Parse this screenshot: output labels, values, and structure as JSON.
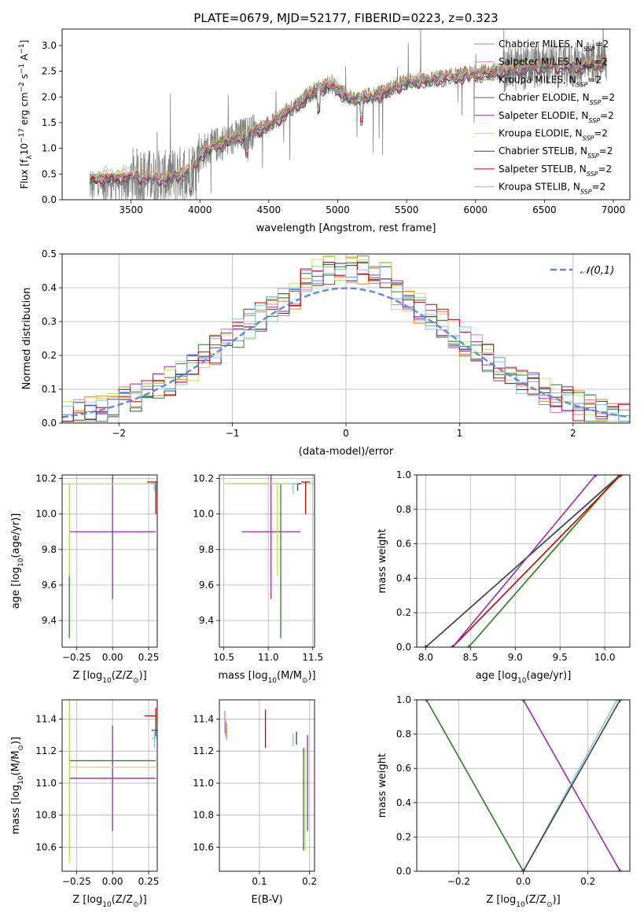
{
  "figure": {
    "title": "PLATE=0679, MJD=52177, FIBERID=0223, z=0.323"
  },
  "series_legend": [
    {
      "name": "Chabrier MILES, N$_{SSP}$=2",
      "label": "Chabrier MILES, N",
      "sub": "SSP",
      "tail": "=2",
      "color": "#6b8fd6"
    },
    {
      "name": "Salpeter MILES, N$_{SSP}$=2",
      "label": "Salpeter MILES, N",
      "sub": "SSP",
      "tail": "=2",
      "color": "#e377c2"
    },
    {
      "name": "Kroupa MILES, N$_{SSP}$=2",
      "label": "Kroupa MILES, N",
      "sub": "SSP",
      "tail": "=2",
      "color": "#ff7f0e"
    },
    {
      "name": "Chabrier ELODIE, N$_{SSP}$=2",
      "label": "Chabrier ELODIE, N",
      "sub": "SSP",
      "tail": "=2",
      "color": "#2e7d32"
    },
    {
      "name": "Salpeter ELODIE, N$_{SSP}$=2",
      "label": "Salpeter ELODIE, N",
      "sub": "SSP",
      "tail": "=2",
      "color": "#9c27b0"
    },
    {
      "name": "Kroupa ELODIE, N$_{SSP}$=2",
      "label": "Kroupa ELODIE, N",
      "sub": "SSP",
      "tail": "=2",
      "color": "#c6e24f"
    },
    {
      "name": "Chabrier STELIB, N$_{SSP}$=2",
      "label": "Chabrier STELIB, N",
      "sub": "SSP",
      "tail": "=2",
      "color": "#404040"
    },
    {
      "name": "Salpeter STELIB, N$_{SSP}$=2",
      "label": "Salpeter STELIB, N",
      "sub": "SSP",
      "tail": "=2",
      "color": "#c00000"
    },
    {
      "name": "Kroupa STELIB, N$_{SSP}$=2",
      "label": "Kroupa STELIB, N",
      "sub": "SSP",
      "tail": "=2",
      "color": "#7ec8d8"
    }
  ],
  "chart_data": [
    {
      "id": "spectrum",
      "type": "line",
      "xlabel": "wavelength [Angstrom, rest frame]",
      "ylabel_parts": [
        "Flux [f",
        "λ",
        "10",
        "−17",
        " erg cm",
        "−2",
        " s",
        "−1",
        " A",
        "−1",
        "]"
      ],
      "xlim": [
        3000,
        7120
      ],
      "ylim": [
        0,
        3.32
      ],
      "xticks": [
        3500,
        4000,
        4500,
        5000,
        5500,
        6000,
        6500,
        7000
      ],
      "yticks": [
        0.0,
        0.5,
        1.0,
        1.5,
        2.0,
        2.5,
        3.0
      ],
      "data_color": "#808080",
      "data_range": [
        3200,
        6950
      ],
      "continuum_knots": {
        "x": [
          3200,
          3500,
          3750,
          3950,
          4000,
          4100,
          4300,
          4500,
          4700,
          4850,
          4950,
          5100,
          5300,
          5500,
          5700,
          5900,
          6100,
          6300,
          6500,
          6700,
          6950
        ],
        "y": [
          0.42,
          0.48,
          0.42,
          0.6,
          0.9,
          1.05,
          1.25,
          1.45,
          1.85,
          2.15,
          2.25,
          1.95,
          2.05,
          2.3,
          2.35,
          2.42,
          2.48,
          2.55,
          2.62,
          2.6,
          2.68
        ]
      }
    },
    {
      "id": "residuals",
      "type": "histogram",
      "xlabel": "(data-model)/error",
      "ylabel": "Normed distribution",
      "xlim": [
        -2.5,
        2.5
      ],
      "ylim": [
        0,
        0.5
      ],
      "xticks": [
        -2,
        -1,
        0,
        1,
        2
      ],
      "yticks": [
        0.0,
        0.1,
        0.2,
        0.3,
        0.4,
        0.5
      ],
      "bin_edges": [
        -2.5,
        2.5
      ],
      "n_bins": 50,
      "reference": {
        "name": "𝒩(0,1)",
        "color": "#5b8bd6",
        "dashed": true
      }
    },
    {
      "id": "age_vs_Z",
      "type": "errorbar",
      "xlabel": "Z [log10(Z/Z⊙)]",
      "ylabel": "age [log10(age/yr)]",
      "xlim": [
        -0.35,
        0.31
      ],
      "ylim": [
        9.25,
        10.22
      ],
      "xticks": [
        -0.25,
        0.0,
        0.25
      ],
      "yticks": [
        9.4,
        9.6,
        9.8,
        10.0,
        10.2
      ],
      "points": [
        {
          "series": 4,
          "x": 0.0,
          "y": 9.9,
          "xerr": 0.3,
          "yerr": 0.38
        },
        {
          "series": 3,
          "x": -0.3,
          "y": 10.17,
          "xerr": 0.0,
          "yerr_lo": 0.87,
          "yerr_hi": 0.0
        },
        {
          "series": 5,
          "x": -0.3,
          "y": 10.17,
          "xerr": 0.6,
          "yerr_lo": 0.52,
          "yerr_hi": 0.0
        },
        {
          "series": 7,
          "x": 0.3,
          "y": 10.18,
          "xerr": 0.06,
          "yerr_lo": 0.18,
          "yerr_hi": 0.0
        },
        {
          "series": 6,
          "x": 0.3,
          "y": 10.17,
          "xerr": 0.03,
          "yerr_lo": 0.05,
          "yerr_hi": 0.0
        },
        {
          "series": 8,
          "x": 0.29,
          "y": 10.17,
          "xerr": 0.02,
          "yerr_lo": 0.04,
          "yerr_hi": 0.0
        }
      ]
    },
    {
      "id": "age_vs_mass",
      "type": "errorbar",
      "xlabel": "mass [log10(M/M⊙)]",
      "xlim": [
        10.45,
        11.52
      ],
      "ylim": [
        9.25,
        10.22
      ],
      "xticks": [
        10.5,
        11.0,
        11.5
      ],
      "yticks": [
        9.4,
        9.6,
        9.8,
        10.0,
        10.2
      ],
      "points": [
        {
          "series": 4,
          "x": 11.03,
          "y": 9.9,
          "xerr": 0.33,
          "yerr": 0.38
        },
        {
          "series": 3,
          "x": 11.14,
          "y": 10.17,
          "xerr": 0.6,
          "yerr_lo": 0.87,
          "yerr_hi": 0.0
        },
        {
          "series": 5,
          "x": 11.1,
          "y": 10.17,
          "xerr": 0.6,
          "yerr_lo": 0.52,
          "yerr_hi": 0.0
        },
        {
          "series": 7,
          "x": 11.42,
          "y": 10.18,
          "xerr": 0.05,
          "yerr_lo": 0.18,
          "yerr_hi": 0.0
        },
        {
          "series": 6,
          "x": 11.33,
          "y": 10.17,
          "xerr": 0.04,
          "yerr_lo": 0.04,
          "yerr_hi": 0.0
        },
        {
          "series": 8,
          "x": 11.28,
          "y": 10.17,
          "xerr": 0.05,
          "yerr_lo": 0.06,
          "yerr_hi": 0.0
        }
      ]
    },
    {
      "id": "weight_vs_age",
      "type": "line",
      "xlabel": "age [log10(age/yr)]",
      "ylabel": "mass weight",
      "xlim": [
        7.9,
        10.28
      ],
      "ylim": [
        0,
        1.0
      ],
      "xticks": [
        8.0,
        8.5,
        9.0,
        9.5,
        10.0
      ],
      "yticks": [
        0.0,
        0.2,
        0.4,
        0.6,
        0.8,
        1.0
      ],
      "lines": [
        {
          "series": 8,
          "x": [
            8.0,
            10.18
          ],
          "y": [
            0.0,
            1.0
          ]
        },
        {
          "series": 6,
          "x": [
            8.0,
            10.17
          ],
          "y": [
            0.0,
            1.0
          ]
        },
        {
          "series": 5,
          "x": [
            8.48,
            10.17
          ],
          "y": [
            0.0,
            1.0
          ]
        },
        {
          "series": 3,
          "x": [
            8.48,
            10.16
          ],
          "y": [
            0.0,
            1.0
          ]
        },
        {
          "series": 7,
          "x": [
            8.3,
            10.18
          ],
          "y": [
            0.0,
            1.0
          ]
        },
        {
          "series": 4,
          "x": [
            8.3,
            9.9
          ],
          "y": [
            0.0,
            1.0
          ]
        }
      ]
    },
    {
      "id": "mass_vs_Z",
      "type": "errorbar",
      "xlabel": "Z [log10(Z/Z⊙)]",
      "ylabel": "mass [log10(M/M⊙)]",
      "xlim": [
        -0.35,
        0.31
      ],
      "ylim": [
        10.45,
        11.52
      ],
      "xticks": [
        -0.25,
        0.0,
        0.25
      ],
      "yticks": [
        10.6,
        10.8,
        11.0,
        11.2,
        11.4
      ],
      "points": [
        {
          "series": 4,
          "x": 0.0,
          "y": 11.03,
          "xerr": 0.3,
          "yerr": 0.33
        },
        {
          "series": 3,
          "x": -0.3,
          "y": 11.14,
          "xerr_lo": 0.0,
          "xerr_hi": 0.6,
          "yerr": 0.6
        },
        {
          "series": 5,
          "x": -0.3,
          "y": 11.1,
          "xerr_lo": 0.0,
          "xerr_hi": 0.6,
          "yerr": 0.6
        },
        {
          "series": 7,
          "x": 0.3,
          "y": 11.42,
          "xerr_lo": 0.08,
          "xerr_hi": 0.0,
          "yerr": 0.05
        },
        {
          "series": 6,
          "x": 0.3,
          "y": 11.33,
          "xerr": 0.03,
          "yerr": 0.04
        },
        {
          "series": 8,
          "x": 0.29,
          "y": 11.28,
          "xerr": 0.02,
          "yerr": 0.06
        }
      ]
    },
    {
      "id": "mass_vs_ebv",
      "type": "errorbar",
      "xlabel": "E(B-V)",
      "xlim": [
        0.02,
        0.21
      ],
      "ylim": [
        10.45,
        11.52
      ],
      "xticks": [
        0.1,
        0.2
      ],
      "yticks": [
        10.6,
        10.8,
        11.0,
        11.2,
        11.4
      ],
      "points": [
        {
          "series": 1,
          "x": 0.031,
          "y": 11.38,
          "yerr": 0.07
        },
        {
          "series": 2,
          "x": 0.034,
          "y": 11.32,
          "yerr": 0.05
        },
        {
          "series": 0,
          "x": 0.033,
          "y": 11.34,
          "yerr": 0.05
        },
        {
          "series": 7,
          "x": 0.112,
          "y": 11.34,
          "yerr": 0.12
        },
        {
          "series": 8,
          "x": 0.167,
          "y": 11.27,
          "yerr": 0.04
        },
        {
          "series": 6,
          "x": 0.174,
          "y": 11.28,
          "yerr": 0.04
        },
        {
          "series": 3,
          "x": 0.188,
          "y": 10.9,
          "yerr": 0.32
        },
        {
          "series": 5,
          "x": 0.191,
          "y": 10.9,
          "yerr": 0.32
        },
        {
          "series": 4,
          "x": 0.196,
          "y": 11.0,
          "yerr": 0.3
        }
      ]
    },
    {
      "id": "weight_vs_Z",
      "type": "line",
      "xlabel": "Z [log10(Z/Z⊙)]",
      "ylabel": "mass weight",
      "xlim": [
        -0.33,
        0.33
      ],
      "ylim": [
        0,
        1.0
      ],
      "xticks": [
        -0.2,
        0.0,
        0.2
      ],
      "yticks": [
        0.0,
        0.2,
        0.4,
        0.6,
        0.8,
        1.0
      ],
      "lines": [
        {
          "series": 5,
          "x": [
            -0.3,
            0.0
          ],
          "y": [
            1.0,
            0.0
          ]
        },
        {
          "series": 3,
          "x": [
            -0.3,
            0.0
          ],
          "y": [
            1.0,
            0.0
          ]
        },
        {
          "series": 4,
          "x": [
            0.0,
            0.3
          ],
          "y": [
            1.0,
            0.0
          ]
        },
        {
          "series": 8,
          "x": [
            0.0,
            0.29
          ],
          "y": [
            0.0,
            1.0
          ]
        },
        {
          "series": 6,
          "x": [
            0.0,
            0.3
          ],
          "y": [
            0.0,
            1.0
          ]
        }
      ]
    }
  ]
}
